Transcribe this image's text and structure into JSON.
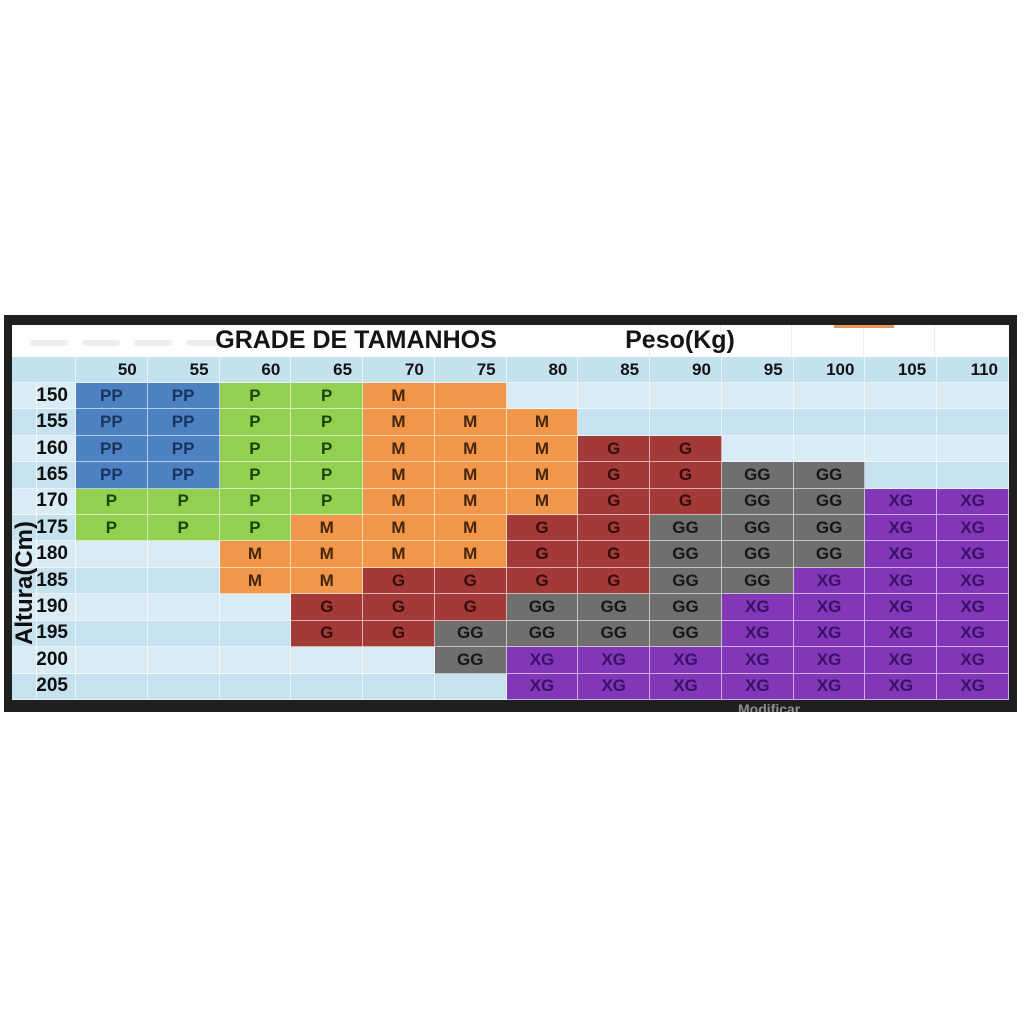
{
  "chart_data": {
    "type": "heatmap",
    "title": "GRADE DE TAMANHOS",
    "x_axis_title": "Peso(Kg)",
    "y_axis_title": "Altura(Cm)",
    "x_categories": [
      "50",
      "55",
      "60",
      "65",
      "70",
      "75",
      "80",
      "85",
      "90",
      "95",
      "100",
      "105",
      "110"
    ],
    "y_categories": [
      "150",
      "155",
      "160",
      "165",
      "170",
      "175",
      "180",
      "185",
      "190",
      "195",
      "200",
      "205"
    ],
    "sizes_legend": [
      "PP",
      "P",
      "M",
      "G",
      "GG",
      "XG"
    ],
    "unlabeled_fill_code": "M-",
    "cell_matrix": [
      [
        "PP",
        "PP",
        "P",
        "P",
        "M",
        "M-",
        "",
        "",
        "",
        "",
        "",
        "",
        ""
      ],
      [
        "PP",
        "PP",
        "P",
        "P",
        "M",
        "M",
        "M",
        "",
        "",
        "",
        "",
        "",
        ""
      ],
      [
        "PP",
        "PP",
        "P",
        "P",
        "M",
        "M",
        "M",
        "G",
        "G",
        "",
        "",
        "",
        ""
      ],
      [
        "PP",
        "PP",
        "P",
        "P",
        "M",
        "M",
        "M",
        "G",
        "G",
        "GG",
        "GG",
        "",
        ""
      ],
      [
        "P",
        "P",
        "P",
        "P",
        "M",
        "M",
        "M",
        "G",
        "G",
        "GG",
        "GG",
        "XG",
        "XG"
      ],
      [
        "P",
        "P",
        "P",
        "M",
        "M",
        "M",
        "G",
        "G",
        "GG",
        "GG",
        "GG",
        "XG",
        "XG"
      ],
      [
        "",
        "",
        "M",
        "M",
        "M",
        "M",
        "G",
        "G",
        "GG",
        "GG",
        "GG",
        "XG",
        "XG"
      ],
      [
        "",
        "",
        "M",
        "M",
        "G",
        "G",
        "G",
        "G",
        "GG",
        "GG",
        "XG",
        "XG",
        "XG"
      ],
      [
        "",
        "",
        "",
        "G",
        "G",
        "G",
        "GG",
        "GG",
        "GG",
        "XG",
        "XG",
        "XG",
        "XG"
      ],
      [
        "",
        "",
        "",
        "G",
        "G",
        "GG",
        "GG",
        "GG",
        "GG",
        "XG",
        "XG",
        "XG",
        "XG"
      ],
      [
        "",
        "",
        "",
        "",
        "",
        "GG",
        "XG",
        "XG",
        "XG",
        "XG",
        "XG",
        "XG",
        "XG"
      ],
      [
        "",
        "",
        "",
        "",
        "",
        "",
        "XG",
        "XG",
        "XG",
        "XG",
        "XG",
        "XG",
        "XG"
      ]
    ],
    "size_colors": {
      "PP": {
        "bg": "#4d81c2",
        "text": "#16355d"
      },
      "P": {
        "bg": "#92d050",
        "text": "#1b430f"
      },
      "M": {
        "bg": "#f2964a",
        "text": "#45260b"
      },
      "G": {
        "bg": "#a33a37",
        "text": "#330d0d"
      },
      "GG": {
        "bg": "#6f6f6f",
        "text": "#161616"
      },
      "XG": {
        "bg": "#8137b8",
        "text": "#391064"
      }
    },
    "layout": {
      "row_stripe_light": "#d9ecf5",
      "row_stripe_dark": "#c6e2ef",
      "header_bg": "#c4e1ee",
      "frame_color": "#1f1f1f",
      "accent_sliver_color": "#e9975a"
    }
  },
  "footer_note": "Modificar"
}
